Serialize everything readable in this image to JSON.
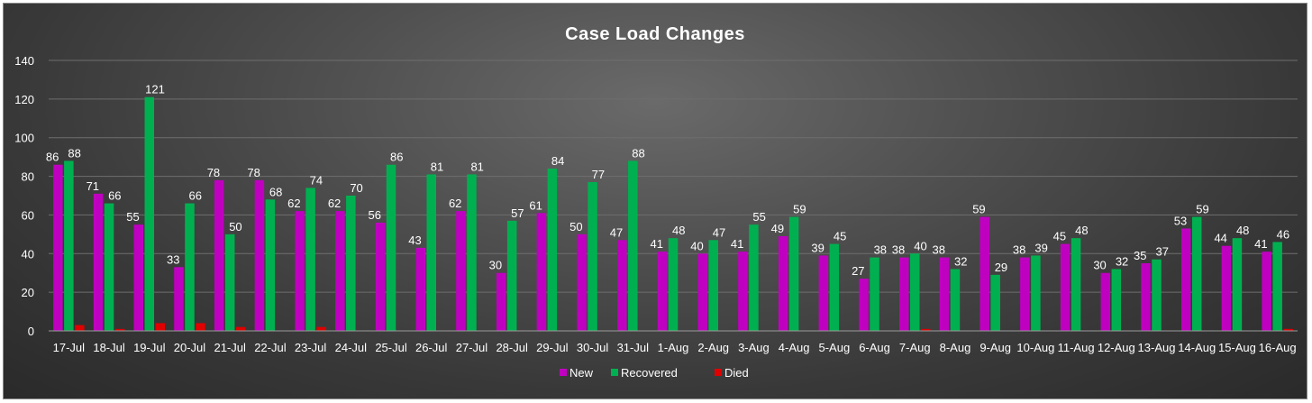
{
  "chart_data": {
    "type": "bar",
    "title": "Case Load Changes",
    "xlabel": "",
    "ylabel": "",
    "ylim": [
      0,
      140
    ],
    "yticks": [
      0,
      20,
      40,
      60,
      80,
      100,
      120,
      140
    ],
    "grid": true,
    "legend_position": "bottom",
    "categories": [
      "17-Jul",
      "18-Jul",
      "19-Jul",
      "20-Jul",
      "21-Jul",
      "22-Jul",
      "23-Jul",
      "24-Jul",
      "25-Jul",
      "26-Jul",
      "27-Jul",
      "28-Jul",
      "29-Jul",
      "30-Jul",
      "31-Jul",
      "1-Aug",
      "2-Aug",
      "3-Aug",
      "4-Aug",
      "5-Aug",
      "6-Aug",
      "7-Aug",
      "8-Aug",
      "9-Aug",
      "10-Aug",
      "11-Aug",
      "12-Aug",
      "13-Aug",
      "14-Aug",
      "15-Aug",
      "16-Aug"
    ],
    "series": [
      {
        "name": "New",
        "color": "#c000c0",
        "show_labels": true,
        "values": [
          86,
          71,
          55,
          33,
          78,
          78,
          62,
          62,
          56,
          43,
          62,
          30,
          61,
          50,
          47,
          41,
          40,
          41,
          49,
          39,
          27,
          38,
          38,
          59,
          38,
          45,
          30,
          35,
          53,
          44,
          41
        ]
      },
      {
        "name": "Recovered",
        "color": "#00b050",
        "show_labels": true,
        "values": [
          88,
          66,
          121,
          66,
          50,
          68,
          74,
          70,
          86,
          81,
          81,
          57,
          84,
          77,
          88,
          48,
          47,
          55,
          59,
          45,
          38,
          40,
          32,
          29,
          39,
          48,
          32,
          37,
          59,
          48,
          46
        ]
      },
      {
        "name": "Died",
        "color": "#e00000",
        "show_labels": false,
        "values": [
          3,
          1,
          4,
          4,
          2,
          0,
          2,
          0,
          0,
          0,
          0,
          0,
          0,
          0,
          0,
          0,
          0,
          0,
          0,
          0,
          0,
          1,
          0,
          0,
          0,
          0,
          0,
          0,
          0,
          0,
          1
        ]
      }
    ]
  }
}
